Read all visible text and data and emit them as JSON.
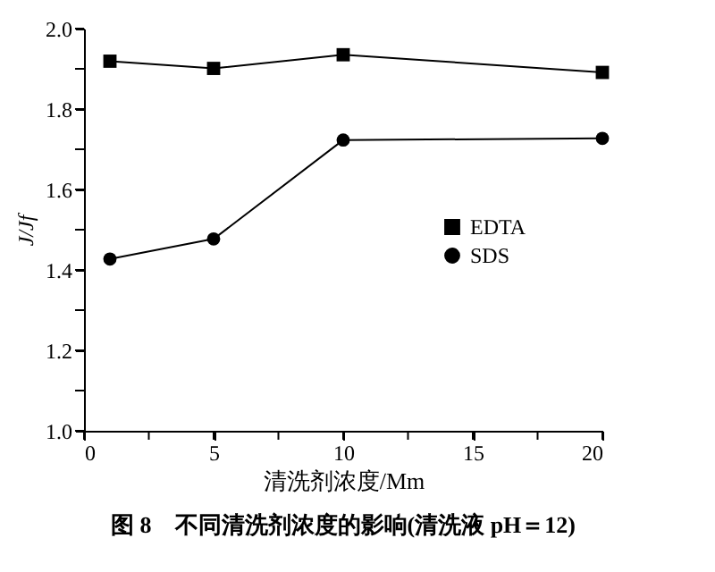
{
  "chart_data": {
    "type": "line",
    "title": "图 8　不同清洗剂浓度的影响(清洗液 pH＝12)",
    "xlabel": "清洗剂浓度/Mm",
    "ylabel": "J/Jf",
    "x": [
      1,
      5,
      10,
      20
    ],
    "series": [
      {
        "name": "EDTA",
        "color": "#000000",
        "marker": "square",
        "values": [
          1.919,
          1.901,
          1.935,
          1.891
        ]
      },
      {
        "name": "SDS",
        "color": "#000000",
        "marker": "circle",
        "values": [
          1.427,
          1.477,
          1.723,
          1.727
        ]
      }
    ],
    "xlim": [
      0,
      20
    ],
    "ylim": [
      1.0,
      2.0
    ],
    "xticks": [
      0,
      {
        "value": 2.5,
        "label": null
      },
      5,
      {
        "value": 7.5,
        "label": null
      },
      10,
      {
        "value": 12.5,
        "label": null
      },
      15,
      {
        "value": 17.5,
        "label": null
      },
      20
    ],
    "yticks": [
      {
        "value": 1.0,
        "label": "1.0"
      },
      {
        "value": 1.1,
        "label": null
      },
      {
        "value": 1.2,
        "label": "1.2"
      },
      {
        "value": 1.3,
        "label": null
      },
      {
        "value": 1.4,
        "label": "1.4"
      },
      {
        "value": 1.5,
        "label": null
      },
      {
        "value": 1.6,
        "label": "1.6"
      },
      {
        "value": 1.7,
        "label": null
      },
      {
        "value": 1.8,
        "label": "1.8"
      },
      {
        "value": 1.9,
        "label": null
      },
      {
        "value": 2.0,
        "label": "2.0"
      }
    ],
    "grid": false,
    "legend": "right",
    "line_style": "solid"
  }
}
